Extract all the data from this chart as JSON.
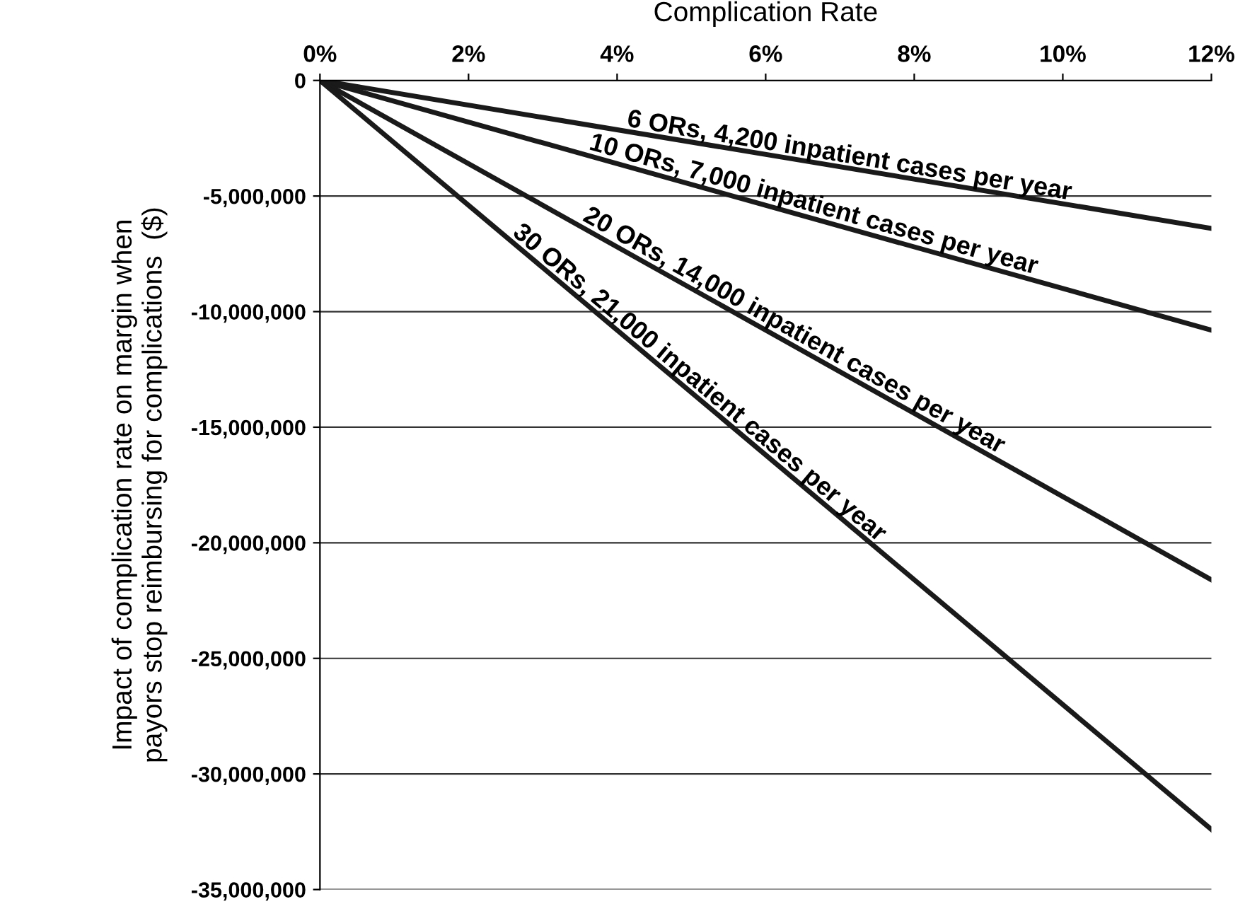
{
  "chart_data": {
    "type": "line",
    "xlabel": "Complication Rate",
    "ylabel": "Impact of complication rate on margin when\npayors stop reimbursing for complications  ($)",
    "x": [
      0,
      12
    ],
    "series": [
      {
        "color": "#1a1a1a",
        "values": [
          0,
          -6400000
        ]
      },
      {
        "color": "#1a1a1a",
        "values": [
          0,
          -10800000
        ]
      },
      {
        "color": "#1a1a1a",
        "values": [
          0,
          -21600000
        ]
      },
      {
        "color": "#1a1a1a",
        "values": [
          0,
          -32400000
        ]
      }
    ],
    "xlim": [
      0,
      12
    ],
    "xticks": [
      {
        "value": 0,
        "label": "0%"
      },
      {
        "value": 2,
        "label": "2%"
      },
      {
        "value": 4,
        "label": "4%"
      },
      {
        "value": 6,
        "label": "6%"
      },
      {
        "value": 8,
        "label": "8%"
      },
      {
        "value": 10,
        "label": "10%"
      },
      {
        "value": 12,
        "label": "12%"
      }
    ],
    "ylim": [
      -35000000,
      0
    ],
    "yticks": [
      {
        "value": 0,
        "label": "0"
      },
      {
        "value": -5000000,
        "label": "-5,000,000"
      },
      {
        "value": -10000000,
        "label": "-10,000,000"
      },
      {
        "value": -15000000,
        "label": "-15,000,000"
      },
      {
        "value": -20000000,
        "label": "-20,000,000"
      },
      {
        "value": -25000000,
        "label": "-25,000,000"
      },
      {
        "value": -30000000,
        "label": "-30,000,000"
      },
      {
        "value": -35000000,
        "label": "-35,000,000"
      }
    ],
    "grid": "y",
    "legend": false,
    "marker": "none",
    "line_style": "solid",
    "annotations": [
      {
        "text": "6 ORs, 4,200 inpatient cases per year",
        "x": 7.1,
        "y": -3800000
      },
      {
        "text": "10 ORs, 7,000 inpatient cases per year",
        "x": 6.6,
        "y": -5900000
      },
      {
        "text": "20 ORs, 14,000 inpatient cases per year",
        "x": 6.3,
        "y": -11300000
      },
      {
        "text": "30 ORs, 21,000 inpatient cases per year",
        "x": 5.0,
        "y": -13500000
      }
    ]
  }
}
